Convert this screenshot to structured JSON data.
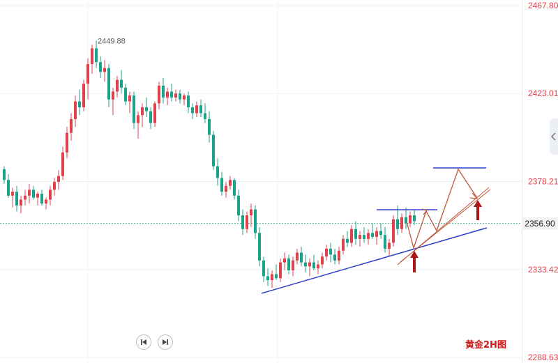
{
  "chart_data": {
    "type": "candlestick",
    "title": "黄金2H图",
    "y_ticks": [
      "2467.80",
      "2423.01",
      "2378.21",
      "2333.42",
      "2288.63"
    ],
    "ylim": [
      2288.63,
      2467.8
    ],
    "current_price": "2356.90",
    "high_marker": "2449.88",
    "up_color": "#e0424c",
    "down_color": "#1aa38a",
    "grid": "horizontal",
    "candles": [
      [
        2384.5,
        2386,
        2377,
        2379
      ],
      [
        2379,
        2382,
        2370,
        2371
      ],
      [
        2371,
        2375,
        2365,
        2373
      ],
      [
        2373,
        2376,
        2363,
        2366
      ],
      [
        2366,
        2371,
        2362,
        2369
      ],
      [
        2369,
        2374,
        2366,
        2371
      ],
      [
        2371,
        2377,
        2367,
        2374
      ],
      [
        2374,
        2376,
        2369,
        2370
      ],
      [
        2370,
        2373,
        2366,
        2372
      ],
      [
        2372,
        2374,
        2366,
        2367
      ],
      [
        2367,
        2370,
        2364,
        2369
      ],
      [
        2369,
        2376,
        2366,
        2374
      ],
      [
        2374,
        2380,
        2371,
        2378
      ],
      [
        2378,
        2384,
        2374,
        2381
      ],
      [
        2381,
        2396,
        2379,
        2393
      ],
      [
        2393,
        2406,
        2390,
        2403
      ],
      [
        2403,
        2413,
        2399,
        2410
      ],
      [
        2410,
        2422,
        2406,
        2419
      ],
      [
        2419,
        2425,
        2412,
        2416
      ],
      [
        2416,
        2430,
        2414,
        2428
      ],
      [
        2428,
        2441,
        2420,
        2438
      ],
      [
        2438,
        2448,
        2433,
        2446
      ],
      [
        2446,
        2450,
        2436,
        2439
      ],
      [
        2439,
        2442,
        2431,
        2434
      ],
      [
        2434,
        2440,
        2429,
        2436
      ],
      [
        2436,
        2438,
        2416,
        2420
      ],
      [
        2420,
        2426,
        2412,
        2424
      ],
      [
        2424,
        2432,
        2421,
        2430
      ],
      [
        2430,
        2435,
        2423,
        2426
      ],
      [
        2426,
        2428,
        2417,
        2419
      ],
      [
        2419,
        2424,
        2413,
        2422
      ],
      [
        2422,
        2424,
        2405,
        2408
      ],
      [
        2408,
        2414,
        2400,
        2412
      ],
      [
        2412,
        2418,
        2406,
        2416
      ],
      [
        2416,
        2421,
        2411,
        2414
      ],
      [
        2414,
        2416,
        2405,
        2408
      ],
      [
        2408,
        2419,
        2406,
        2418
      ],
      [
        2418,
        2429,
        2415,
        2427
      ],
      [
        2427,
        2431,
        2418,
        2421
      ],
      [
        2421,
        2426,
        2417,
        2424
      ],
      [
        2424,
        2428,
        2419,
        2421
      ],
      [
        2421,
        2425,
        2419,
        2423
      ],
      [
        2423,
        2425,
        2418,
        2420
      ],
      [
        2420,
        2423,
        2417,
        2422
      ],
      [
        2422,
        2424,
        2413,
        2416
      ],
      [
        2416,
        2418,
        2410,
        2413
      ],
      [
        2413,
        2419,
        2411,
        2417
      ],
      [
        2417,
        2420,
        2411,
        2413
      ],
      [
        2413,
        2418,
        2408,
        2410
      ],
      [
        2410,
        2414,
        2398,
        2402
      ],
      [
        2402,
        2404,
        2384,
        2386
      ],
      [
        2386,
        2390,
        2376,
        2380
      ],
      [
        2380,
        2383,
        2371,
        2373
      ],
      [
        2373,
        2378,
        2370,
        2376
      ],
      [
        2376,
        2381,
        2374,
        2379
      ],
      [
        2379,
        2380,
        2369,
        2371
      ],
      [
        2371,
        2374,
        2358,
        2361
      ],
      [
        2361,
        2364,
        2351,
        2354
      ],
      [
        2354,
        2363,
        2352,
        2361
      ],
      [
        2361,
        2367,
        2355,
        2364
      ],
      [
        2364,
        2366,
        2349,
        2352
      ],
      [
        2352,
        2355,
        2335,
        2338
      ],
      [
        2338,
        2340,
        2327,
        2330
      ],
      [
        2330,
        2334,
        2325,
        2328
      ],
      [
        2328,
        2333,
        2324,
        2331
      ],
      [
        2331,
        2336,
        2328,
        2329
      ],
      [
        2329,
        2339,
        2327,
        2337
      ],
      [
        2337,
        2342,
        2333,
        2339
      ],
      [
        2339,
        2341,
        2331,
        2333
      ],
      [
        2333,
        2340,
        2330,
        2338
      ],
      [
        2338,
        2344,
        2336,
        2342
      ],
      [
        2342,
        2345,
        2335,
        2337
      ],
      [
        2337,
        2341,
        2332,
        2335
      ],
      [
        2335,
        2339,
        2330,
        2337
      ],
      [
        2337,
        2341,
        2333,
        2334
      ],
      [
        2334,
        2338,
        2331,
        2336
      ],
      [
        2336,
        2342,
        2334,
        2340
      ],
      [
        2340,
        2346,
        2338,
        2344
      ],
      [
        2344,
        2347,
        2337,
        2341
      ],
      [
        2341,
        2344,
        2336,
        2338
      ],
      [
        2338,
        2345,
        2336,
        2343
      ],
      [
        2343,
        2351,
        2341,
        2349
      ],
      [
        2349,
        2353,
        2345,
        2347
      ],
      [
        2347,
        2356,
        2345,
        2354
      ],
      [
        2354,
        2358,
        2346,
        2349
      ],
      [
        2349,
        2353,
        2345,
        2351
      ],
      [
        2351,
        2355,
        2347,
        2349
      ],
      [
        2349,
        2354,
        2346,
        2352
      ],
      [
        2352,
        2357,
        2349,
        2350
      ],
      [
        2350,
        2355,
        2346,
        2353
      ],
      [
        2353,
        2357,
        2349,
        2351
      ],
      [
        2351,
        2355,
        2342,
        2344
      ],
      [
        2344,
        2349,
        2340,
        2347
      ],
      [
        2347,
        2361,
        2345,
        2359
      ],
      [
        2359,
        2366,
        2351,
        2354
      ],
      [
        2354,
        2362,
        2352,
        2360
      ],
      [
        2360,
        2365,
        2354,
        2357
      ],
      [
        2357,
        2363,
        2355,
        2361
      ],
      [
        2361,
        2364,
        2356,
        2358
      ]
    ]
  },
  "controls": {
    "prev_icon": "skip-previous-icon",
    "next_icon": "skip-next-icon",
    "side_icon": "chevron-left-icon"
  }
}
